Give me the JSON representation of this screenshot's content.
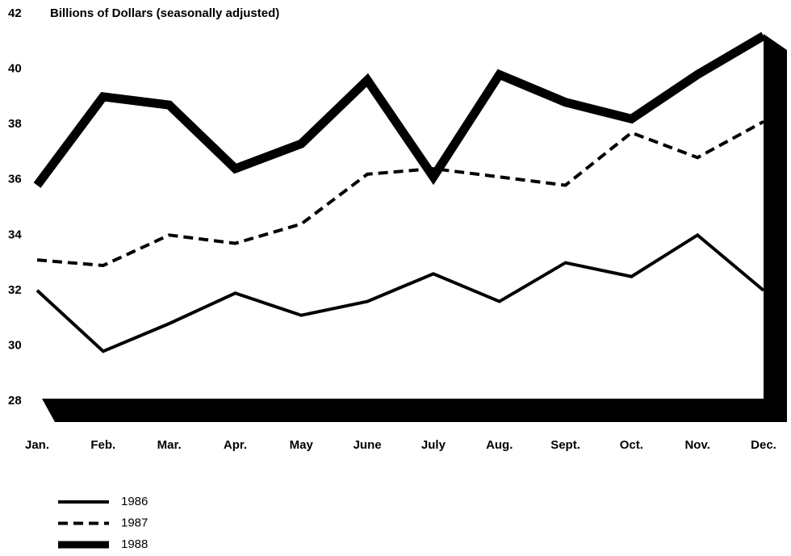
{
  "chart_data": {
    "type": "line",
    "title": "Billions of Dollars (seasonally adjusted)",
    "categories": [
      "Jan.",
      "Feb.",
      "Mar.",
      "Apr.",
      "May",
      "June",
      "July",
      "Aug.",
      "Sept.",
      "Oct.",
      "Nov.",
      "Dec."
    ],
    "series": [
      {
        "name": "1986",
        "color": "#000000",
        "style": "solid",
        "values": [
          32.0,
          29.8,
          30.8,
          31.9,
          31.1,
          31.6,
          32.6,
          31.6,
          33.0,
          32.5,
          34.0,
          32.0
        ]
      },
      {
        "name": "1987",
        "color": "#000000",
        "style": "dashed",
        "values": [
          33.1,
          32.9,
          34.0,
          33.7,
          34.4,
          36.2,
          36.4,
          36.1,
          35.8,
          37.7,
          36.8,
          38.1
        ]
      },
      {
        "name": "1988",
        "color": "#000000",
        "style": "thick",
        "values": [
          35.8,
          39.0,
          38.7,
          36.4,
          37.3,
          39.6,
          36.1,
          39.8,
          38.8,
          38.2,
          39.8,
          41.2
        ]
      }
    ],
    "ylim": [
      28,
      42
    ],
    "yticks": [
      28,
      30,
      32,
      34,
      36,
      38,
      40,
      42
    ],
    "grid": false
  }
}
